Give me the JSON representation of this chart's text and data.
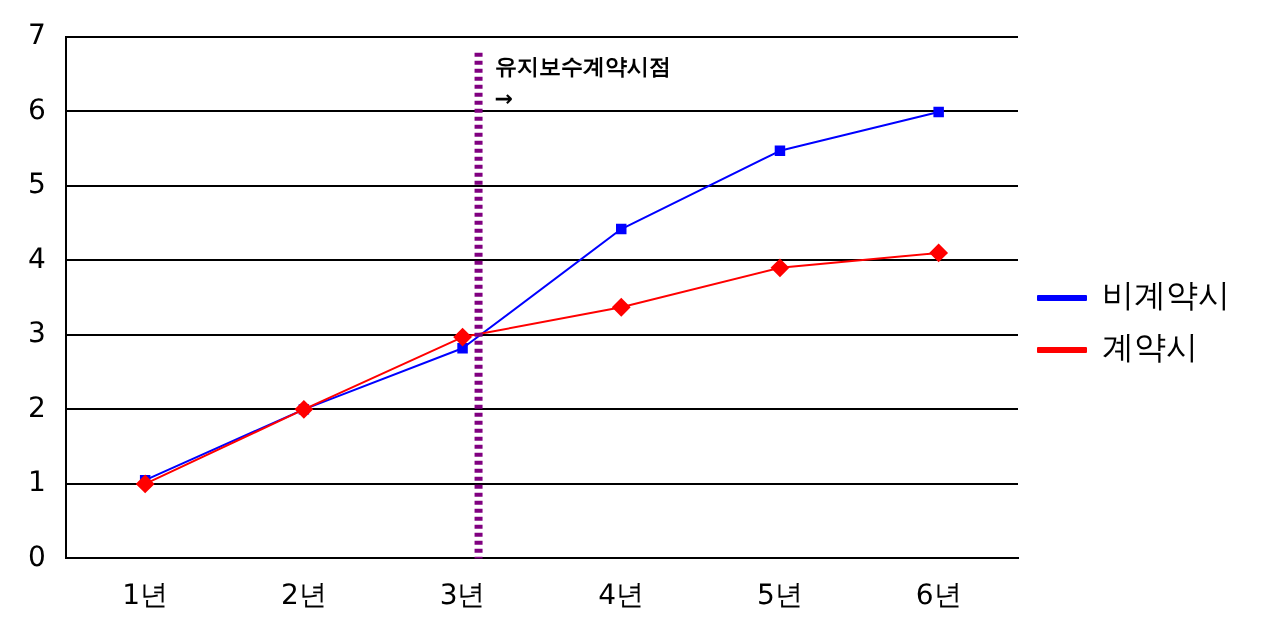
{
  "chart_data": {
    "type": "line",
    "categories": [
      "1년",
      "2년",
      "3년",
      "4년",
      "5년",
      "6년"
    ],
    "series": [
      {
        "name": "비계약시",
        "color": "#0000ff",
        "marker": "square",
        "values": [
          1.05,
          2.0,
          2.82,
          4.42,
          5.47,
          5.99
        ]
      },
      {
        "name": "계약시",
        "color": "#ff0000",
        "marker": "diamond",
        "values": [
          1.0,
          2.0,
          2.97,
          3.37,
          3.9,
          4.1
        ]
      }
    ],
    "ylim": [
      0,
      7
    ],
    "yticks": [
      0,
      1,
      2,
      3,
      4,
      5,
      6,
      7
    ],
    "grid": "y",
    "legend": "right",
    "line_style": "solid",
    "ref_lines": [
      {
        "axis": "x",
        "value": "3년",
        "label": "유지보수계약시점\n→",
        "color": "#800080",
        "line_style": "dotted"
      }
    ]
  }
}
